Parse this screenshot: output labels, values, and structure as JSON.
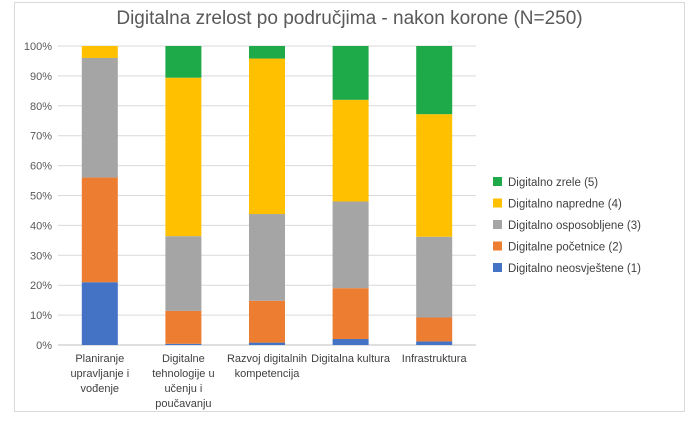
{
  "chart_data": {
    "type": "bar",
    "stacked": true,
    "percent": true,
    "title": "Digitalna zrelost po područjima - nakon korone (N=250)",
    "xlabel": "",
    "ylabel": "",
    "ylim": [
      0,
      100
    ],
    "yticks": [
      "0%",
      "10%",
      "20%",
      "30%",
      "40%",
      "50%",
      "60%",
      "70%",
      "80%",
      "90%",
      "100%"
    ],
    "grid": true,
    "legend_position": "right",
    "categories": [
      "Planiranje upravljanje i vođenje",
      "Digitalne tehnologije u učenju i poučavanju",
      "Razvoj digitalnih kompetencija",
      "Digitalna kultura",
      "Infrastruktura"
    ],
    "category_lines": [
      [
        "Planiranje",
        "upravljanje i",
        "vođenje"
      ],
      [
        "Digitalne",
        "tehnologije u",
        "učenju i",
        "poučavanju"
      ],
      [
        "Razvoj digitalnih",
        "kompetencija"
      ],
      [
        "Digitalna kultura"
      ],
      [
        "Infrastruktura"
      ]
    ],
    "series": [
      {
        "name": "Digitalno neosvještene (1)",
        "color": "#4472c4",
        "values": [
          21,
          0.4,
          0.8,
          2,
          1.2
        ]
      },
      {
        "name": "Digitalne početnice (2)",
        "color": "#ed7d31",
        "values": [
          35,
          11,
          14,
          17,
          8
        ]
      },
      {
        "name": "Digitalno osposobljene (3)",
        "color": "#a5a5a5",
        "values": [
          40,
          25,
          29,
          29,
          27
        ]
      },
      {
        "name": "Digitalno napredne (4)",
        "color": "#ffc000",
        "values": [
          4,
          53,
          52,
          34,
          41
        ]
      },
      {
        "name": "Digitalno zrele (5)",
        "color": "#1faa4a",
        "values": [
          0,
          10.6,
          4.2,
          18,
          22.8
        ]
      }
    ],
    "legend_order": [
      "Digitalno zrele (5)",
      "Digitalno napredne (4)",
      "Digitalno osposobljene (3)",
      "Digitalne početnice (2)",
      "Digitalno neosvještene (1)"
    ]
  }
}
